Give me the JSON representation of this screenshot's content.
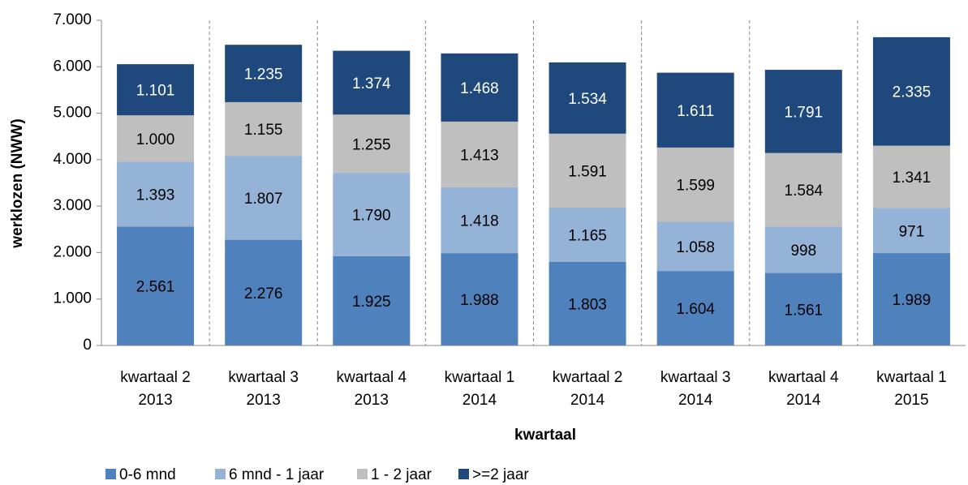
{
  "chart_data": {
    "type": "stacked_bar",
    "y_label": "werklozen (NWW)",
    "x_label": "kwartaal",
    "categories": [
      "kwartaal 2 2013",
      "kwartaal 3 2013",
      "kwartaal 4 2013",
      "kwartaal 1 2014",
      "kwartaal 2 2014",
      "kwartaal 3 2014",
      "kwartaal 4 2014",
      "kwartaal 1 2015"
    ],
    "series": [
      {
        "name": "0-6 mnd",
        "color": "#4f81bd",
        "label_color": "#000000",
        "values": [
          2561,
          2276,
          1925,
          1988,
          1803,
          1604,
          1561,
          1989
        ],
        "value_labels": [
          "2.561",
          "2.276",
          "1.925",
          "1.988",
          "1.803",
          "1.604",
          "1.561",
          "1.989"
        ]
      },
      {
        "name": "6 mnd - 1 jaar",
        "color": "#95b3d7",
        "label_color": "#000000",
        "values": [
          1393,
          1807,
          1790,
          1418,
          1165,
          1058,
          998,
          971
        ],
        "value_labels": [
          "1.393",
          "1.807",
          "1.790",
          "1.418",
          "1.165",
          "1.058",
          "998",
          "971"
        ]
      },
      {
        "name": "1 - 2 jaar",
        "color": "#bfbfbf",
        "label_color": "#000000",
        "values": [
          1000,
          1155,
          1255,
          1413,
          1591,
          1599,
          1584,
          1341
        ],
        "value_labels": [
          "1.000",
          "1.155",
          "1.255",
          "1.413",
          "1.591",
          "1.599",
          "1.584",
          "1.341"
        ]
      },
      {
        "name": ">=2 jaar",
        "color": "#1f497d",
        "label_color": "#ffffff",
        "values": [
          1101,
          1235,
          1374,
          1468,
          1534,
          1611,
          1791,
          2335
        ],
        "value_labels": [
          "1.101",
          "1.235",
          "1.374",
          "1.468",
          "1.534",
          "1.611",
          "1.791",
          "2.335"
        ]
      }
    ],
    "ylim": [
      0,
      7000
    ],
    "yticks": [
      0,
      {
        "value": 1000,
        "label": "1.000"
      },
      {
        "value": 2000,
        "label": "2.000"
      },
      {
        "value": 3000,
        "label": "3.000"
      },
      {
        "value": 4000,
        "label": "4.000"
      },
      {
        "value": 5000,
        "label": "5.000"
      },
      {
        "value": 6000,
        "label": "6.000"
      },
      {
        "value": 7000,
        "label": "7.000"
      }
    ],
    "x_grid": true,
    "legend": "bottom-left"
  }
}
